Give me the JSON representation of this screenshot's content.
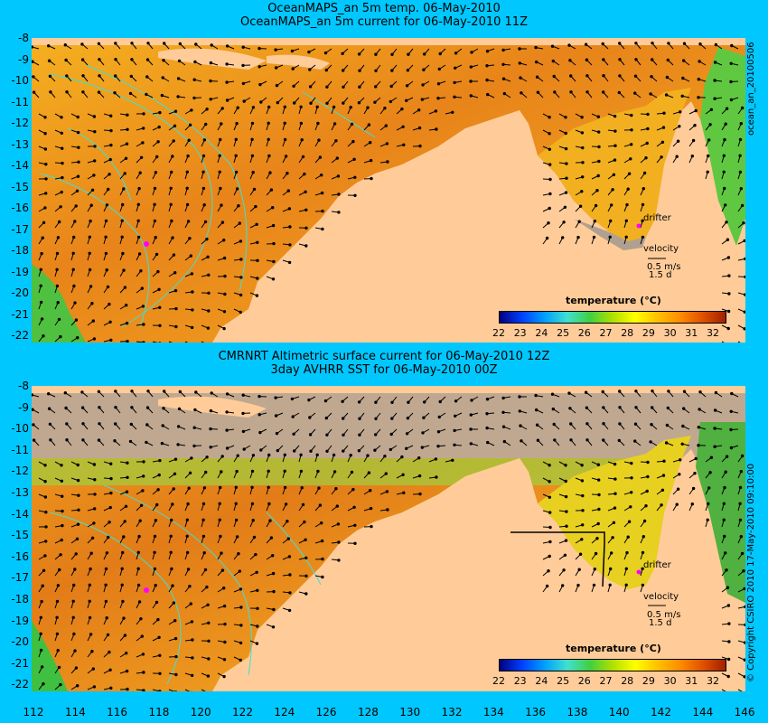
{
  "panel1": {
    "title_line1": "OceanMAPS_an 5m temp. 06-May-2010",
    "title_line2": "OceanMAPS_an 5m current for 06-May-2010 11Z",
    "side_label": "ocean_an_20100506"
  },
  "panel2": {
    "title_line1": "CMRNRT Altimetric surface current for 06-May-2010 12Z",
    "title_line2": "3day AVHRR SST for 06-May-2010 00Z",
    "side_label": "© Copyright CSIRO 2010   17-May-2010 09:10:00"
  },
  "legend": {
    "title": "temperature (°C)",
    "ticks": [
      "22",
      "23",
      "24",
      "25",
      "26",
      "27",
      "28",
      "29",
      "30",
      "31",
      "32"
    ],
    "colors": [
      "#000080",
      "#0040ff",
      "#00a0ff",
      "#40e0d0",
      "#40d040",
      "#b0e000",
      "#ffff00",
      "#ffc000",
      "#ff8c00",
      "#e05000",
      "#a02000"
    ]
  },
  "annotations": {
    "drifter": "drifter",
    "velocity": "velocity",
    "speed": "0.5 m/s",
    "duration": "1.5 d"
  },
  "axes": {
    "y_labels": [
      "-8",
      "-9",
      "-10",
      "-11",
      "-12",
      "-13",
      "-14",
      "-15",
      "-16",
      "-17",
      "-18",
      "-19",
      "-20",
      "-21",
      "-22"
    ],
    "x_labels": [
      "112",
      "114",
      "116",
      "118",
      "120",
      "122",
      "124",
      "126",
      "128",
      "130",
      "132",
      "134",
      "136",
      "138",
      "140",
      "142",
      "144",
      "146"
    ]
  },
  "colors": {
    "background": "#00c8ff",
    "land": "#ffcc99",
    "ocean_warm": "#e88a1a",
    "ocean_mid": "#f2a51e",
    "shelf": "#b0a090"
  }
}
